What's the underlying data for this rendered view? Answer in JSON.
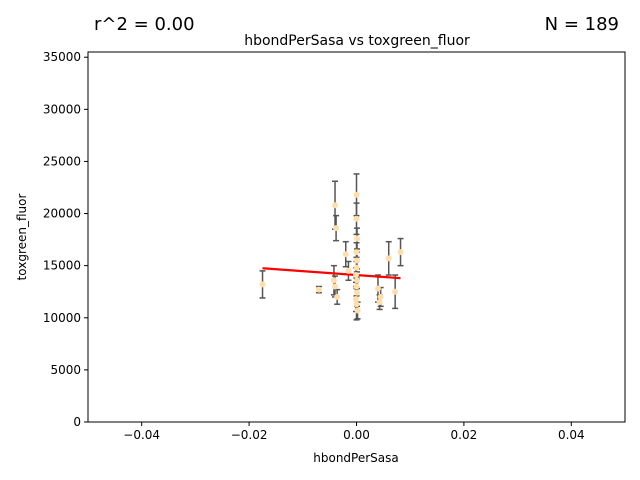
{
  "chart_data": {
    "type": "scatter",
    "title": "hbondPerSasa vs toxgreen_fluor",
    "xlabel": "hbondPerSasa",
    "ylabel": "toxgreen_fluor",
    "r2_text": "r^2 = 0.00",
    "n_text": "N = 189",
    "xlim": [
      -0.05,
      0.05
    ],
    "ylim": [
      0,
      35500
    ],
    "xticks": [
      -0.04,
      -0.02,
      0.0,
      0.02,
      0.04
    ],
    "xtick_labels": [
      "−0.04",
      "−0.02",
      "0.00",
      "0.02",
      "0.04"
    ],
    "yticks": [
      0,
      5000,
      10000,
      15000,
      20000,
      25000,
      30000,
      35000
    ],
    "ytick_labels": [
      "0",
      "5000",
      "10000",
      "15000",
      "20000",
      "25000",
      "30000",
      "35000"
    ],
    "grid": false,
    "point_color": "#ffdead",
    "errorbar_color": "#555555",
    "fit_color": "#ff0000",
    "fit_line": {
      "x": [
        -0.0175,
        0.0082
      ],
      "y": [
        14750,
        13800
      ]
    },
    "points": [
      {
        "x": -0.0175,
        "y": 13200,
        "err": 1300
      },
      {
        "x": -0.007,
        "y": 12700,
        "err": 300
      },
      {
        "x": -0.004,
        "y": 20800,
        "err": 2300
      },
      {
        "x": -0.0038,
        "y": 18600,
        "err": 1200
      },
      {
        "x": -0.0042,
        "y": 13600,
        "err": 1400
      },
      {
        "x": -0.004,
        "y": 13000,
        "err": 1000
      },
      {
        "x": -0.0036,
        "y": 12000,
        "err": 700
      },
      {
        "x": -0.002,
        "y": 16100,
        "err": 1200
      },
      {
        "x": -0.0015,
        "y": 14500,
        "err": 900
      },
      {
        "x": 0.0,
        "y": 21800,
        "err": 2000
      },
      {
        "x": 0.0,
        "y": 19500,
        "err": 1500
      },
      {
        "x": 0.0001,
        "y": 17600,
        "err": 1000
      },
      {
        "x": 0.0,
        "y": 16300,
        "err": 900
      },
      {
        "x": 0.0001,
        "y": 15500,
        "err": 800
      },
      {
        "x": 0.0,
        "y": 14800,
        "err": 1000
      },
      {
        "x": -0.0001,
        "y": 14100,
        "err": 700
      },
      {
        "x": 0.0001,
        "y": 13600,
        "err": 800
      },
      {
        "x": 0.0,
        "y": 13000,
        "err": 900
      },
      {
        "x": 0.0001,
        "y": 12400,
        "err": 1300
      },
      {
        "x": -0.0001,
        "y": 11800,
        "err": 1200
      },
      {
        "x": 0.0,
        "y": 11300,
        "err": 1500
      },
      {
        "x": 0.0002,
        "y": 10700,
        "err": 800
      },
      {
        "x": 0.004,
        "y": 12800,
        "err": 1300
      },
      {
        "x": 0.0045,
        "y": 12000,
        "err": 900
      },
      {
        "x": 0.0043,
        "y": 11500,
        "err": 700
      },
      {
        "x": 0.006,
        "y": 15700,
        "err": 1600
      },
      {
        "x": 0.0072,
        "y": 12500,
        "err": 1600
      },
      {
        "x": 0.0082,
        "y": 16300,
        "err": 1300
      }
    ]
  }
}
